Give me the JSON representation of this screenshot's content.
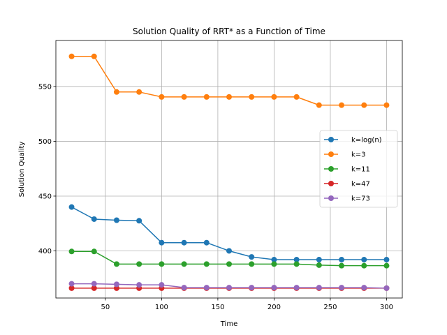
{
  "chart_data": {
    "type": "line",
    "title": "Solution Quality of RRT* as a Function of Time",
    "xlabel": "Time",
    "ylabel": "Solution Quality",
    "xlim": [
      6,
      314
    ],
    "ylim": [
      357,
      592
    ],
    "xticks": [
      50,
      100,
      150,
      200,
      250,
      300
    ],
    "yticks": [
      400,
      450,
      500,
      550
    ],
    "grid": true,
    "legend_position": "center-right",
    "x": [
      20,
      40,
      60,
      80,
      100,
      120,
      140,
      160,
      180,
      200,
      220,
      240,
      260,
      280,
      300
    ],
    "series": [
      {
        "name": "k=log(n)",
        "color": "#1f77b4",
        "values": [
          440,
          429,
          428,
          427.5,
          407.5,
          407.5,
          407.5,
          400,
          394.5,
          392,
          392,
          392,
          392,
          392,
          392
        ]
      },
      {
        "name": "k=3",
        "color": "#ff7f0e",
        "values": [
          577.5,
          577.5,
          545,
          545,
          540.5,
          540.5,
          540.5,
          540.5,
          540.5,
          540.5,
          540.5,
          533,
          533,
          533,
          533
        ]
      },
      {
        "name": "k=11",
        "color": "#2ca02c",
        "values": [
          399.5,
          399.5,
          388,
          388,
          388,
          388,
          388,
          388,
          388,
          388,
          388,
          387,
          386.5,
          386.5,
          386.5
        ]
      },
      {
        "name": "k=47",
        "color": "#d62728",
        "values": [
          366,
          366,
          366,
          366,
          366,
          366,
          366,
          366,
          366,
          366,
          366,
          366,
          366,
          366,
          366
        ]
      },
      {
        "name": "k=73",
        "color": "#9467bd",
        "values": [
          370,
          370,
          369.5,
          369,
          369,
          366.5,
          366.5,
          366.5,
          366.5,
          366.5,
          366.5,
          366.5,
          366.5,
          366.5,
          366
        ]
      }
    ]
  }
}
